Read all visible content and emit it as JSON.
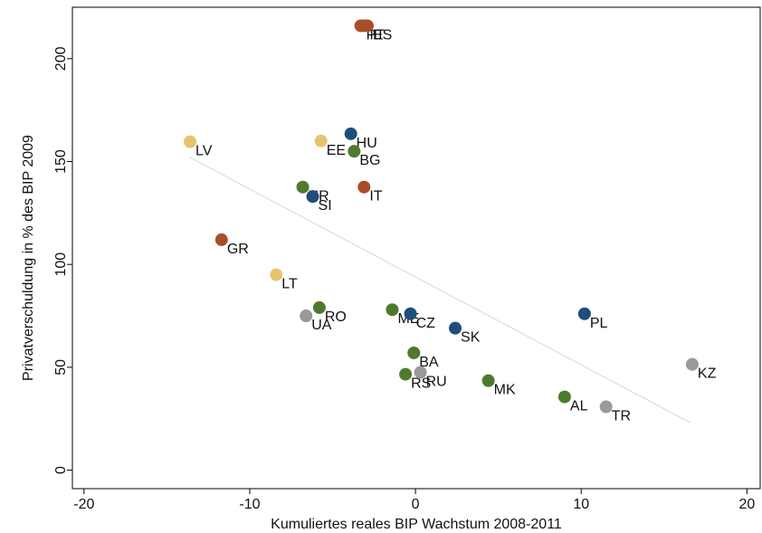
{
  "chart_data": {
    "type": "scatter",
    "x_label": "Kumuliertes reales BIP Wachstum 2008-2011",
    "y_label": "Privatverschuldung in % des BIP 2009",
    "xlim": [
      -20.7,
      20.8
    ],
    "ylim": [
      -9,
      225
    ],
    "xticks": [
      -20,
      -10,
      0,
      10,
      20
    ],
    "yticks": [
      0,
      50,
      100,
      150,
      200
    ],
    "points": [
      {
        "label": "PT",
        "x": -3.3,
        "y": 216,
        "color": "#a84e2a"
      },
      {
        "label": "IE",
        "x": -3.1,
        "y": 216,
        "color": "#a84e2a"
      },
      {
        "label": "ES",
        "x": -2.9,
        "y": 216,
        "color": "#a84e2a"
      },
      {
        "label": "LV",
        "x": -13.6,
        "y": 159.6,
        "color": "#e6c46e"
      },
      {
        "label": "EE",
        "x": -5.7,
        "y": 160,
        "color": "#e6c46e"
      },
      {
        "label": "HU",
        "x": -3.9,
        "y": 163.5,
        "color": "#1f4e7a"
      },
      {
        "label": "BG",
        "x": -3.7,
        "y": 155,
        "color": "#4e7a2e"
      },
      {
        "label": "IT",
        "x": -3.1,
        "y": 137.6,
        "color": "#a84e2a"
      },
      {
        "label": "HR",
        "x": -6.8,
        "y": 137.6,
        "color": "#4e7a2e"
      },
      {
        "label": "SI",
        "x": -6.2,
        "y": 133,
        "color": "#1f4e7a"
      },
      {
        "label": "GR",
        "x": -11.7,
        "y": 112,
        "color": "#a84e2a"
      },
      {
        "label": "LT",
        "x": -8.4,
        "y": 95,
        "color": "#e6c46e"
      },
      {
        "label": "RO",
        "x": -5.8,
        "y": 79,
        "color": "#4e7a2e"
      },
      {
        "label": "UA",
        "x": -6.6,
        "y": 75,
        "color": "#999999"
      },
      {
        "label": "ME",
        "x": -1.4,
        "y": 78,
        "color": "#4e7a2e"
      },
      {
        "label": "CZ",
        "x": -0.3,
        "y": 76,
        "color": "#1f4e7a"
      },
      {
        "label": "SK",
        "x": 2.4,
        "y": 69,
        "color": "#1f4e7a"
      },
      {
        "label": "PL",
        "x": 10.2,
        "y": 76,
        "color": "#1f4e7a"
      },
      {
        "label": "BA",
        "x": -0.1,
        "y": 57,
        "color": "#4e7a2e"
      },
      {
        "label": "RS",
        "x": -0.6,
        "y": 46.6,
        "color": "#4e7a2e"
      },
      {
        "label": "RU",
        "x": 0.3,
        "y": 47.5,
        "color": "#999999"
      },
      {
        "label": "MK",
        "x": 4.4,
        "y": 43.5,
        "color": "#4e7a2e"
      },
      {
        "label": "AL",
        "x": 9.0,
        "y": 35.6,
        "color": "#4e7a2e"
      },
      {
        "label": "TR",
        "x": 11.5,
        "y": 30.8,
        "color": "#999999"
      },
      {
        "label": "KZ",
        "x": 16.7,
        "y": 51.4,
        "color": "#999999"
      }
    ],
    "fit_line": {
      "x": [
        -13.6,
        16.6
      ],
      "y": [
        152,
        23
      ],
      "color": "#d8d8d8"
    }
  }
}
